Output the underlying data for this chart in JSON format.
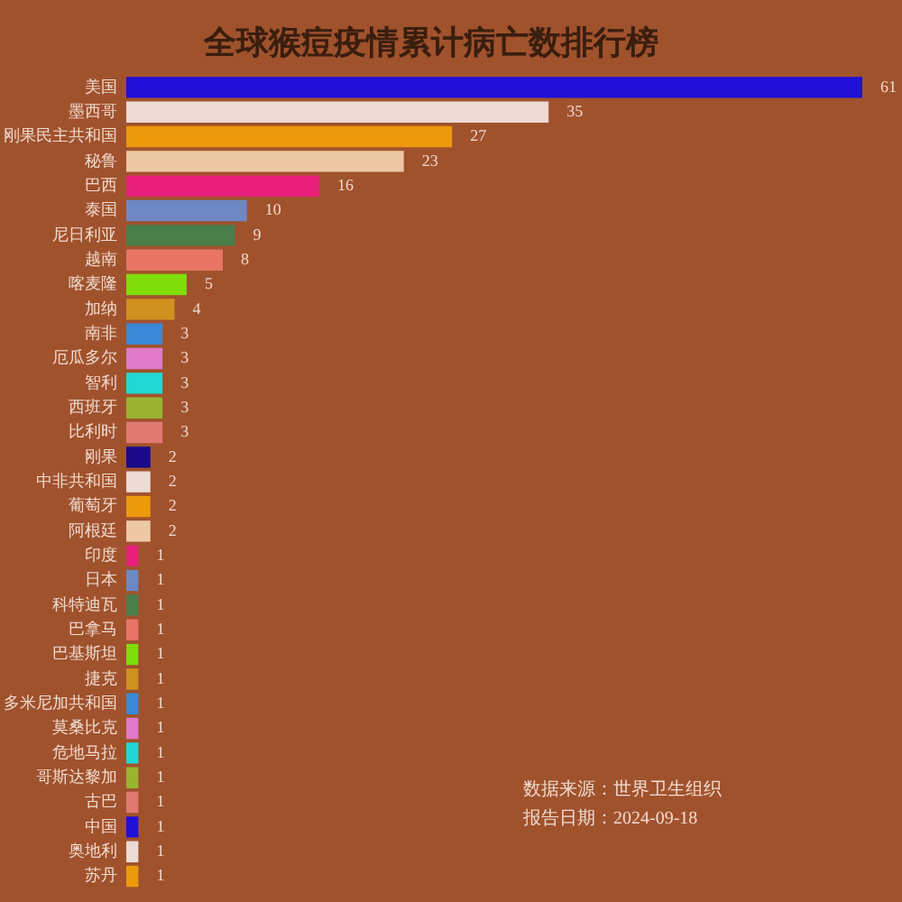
{
  "chart_data": {
    "type": "bar",
    "orientation": "horizontal",
    "title": "全球猴痘疫情累计病亡数排行榜",
    "categories": [
      "美国",
      "墨西哥",
      "刚果民主共和国",
      "秘鲁",
      "巴西",
      "泰国",
      "尼日利亚",
      "越南",
      "喀麦隆",
      "加纳",
      "南非",
      "厄瓜多尔",
      "智利",
      "西班牙",
      "比利时",
      "刚果",
      "中非共和国",
      "葡萄牙",
      "阿根廷",
      "印度",
      "日本",
      "科特迪瓦",
      "巴拿马",
      "巴基斯坦",
      "捷克",
      "多米尼加共和国",
      "莫桑比克",
      "危地马拉",
      "哥斯达黎加",
      "古巴",
      "中国",
      "奥地利",
      "苏丹"
    ],
    "values": [
      61,
      35,
      27,
      23,
      16,
      10,
      9,
      8,
      5,
      4,
      3,
      3,
      3,
      3,
      3,
      2,
      2,
      2,
      2,
      1,
      1,
      1,
      1,
      1,
      1,
      1,
      1,
      1,
      1,
      1,
      1,
      1,
      1
    ],
    "colors": [
      "#2010d8",
      "#ecdad4",
      "#ec9a0c",
      "#ecc8a4",
      "#e8207c",
      "#6e88c4",
      "#4a7e4a",
      "#e87466",
      "#80dc0a",
      "#d0921e",
      "#3a88d8",
      "#e07ac8",
      "#20d8d4",
      "#9ab430",
      "#e07a70",
      "#1a0a8a",
      "#ecdad4",
      "#ec9a0c",
      "#ecc8a4",
      "#e8207c",
      "#6e88c4",
      "#4a7e4a",
      "#e87466",
      "#80dc0a",
      "#d0921e",
      "#3a88d8",
      "#e07ac8",
      "#20d8d4",
      "#9ab430",
      "#e07a70",
      "#2010d8",
      "#ecdad4",
      "#ec9a0c"
    ],
    "data_labels": true,
    "annotations": [
      "数据来源：世界卫生组织",
      "报告日期：2024-09-18"
    ]
  }
}
